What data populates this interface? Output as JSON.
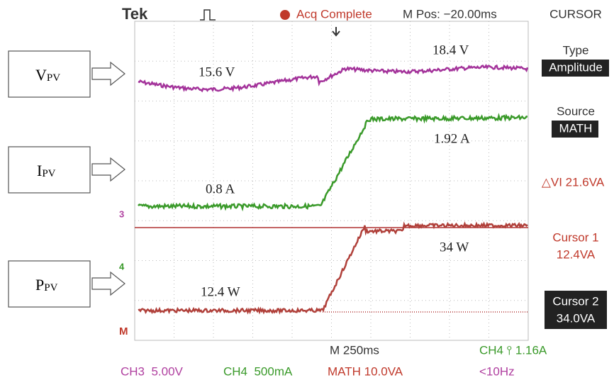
{
  "header": {
    "brand": "Tek",
    "status": "Acq Complete",
    "position": "M Pos: −20.00ms"
  },
  "labels": [
    {
      "main": "V",
      "sub": "PV"
    },
    {
      "main": "I",
      "sub": "PV"
    },
    {
      "main": "P",
      "sub": "PV"
    }
  ],
  "annotations": {
    "v_before": "15.6 V",
    "v_after": "18.4 V",
    "i_before": "0.8 A",
    "i_after": "1.92 A",
    "p_before": "12.4 W",
    "p_after": "34 W"
  },
  "markers": {
    "ch3": "3",
    "ch4": "4",
    "math": "M"
  },
  "menu": {
    "title": "CURSOR",
    "type_label": "Type",
    "type_value": "Amplitude",
    "source_label": "Source",
    "source_value": "MATH",
    "delta": "△VI 21.6VA",
    "cursor1_label": "Cursor 1",
    "cursor1_value": "12.4VA",
    "cursor2_label": "Cursor 2",
    "cursor2_value": "34.0VA"
  },
  "footer": {
    "timebase": "M 250ms",
    "trigger": "CH4 ⫯ 1.16A",
    "ch3": "CH3  5.00V",
    "ch4": "CH4  500mA",
    "math": "MATH 10.0VA",
    "freq": "<10Hz"
  }
}
